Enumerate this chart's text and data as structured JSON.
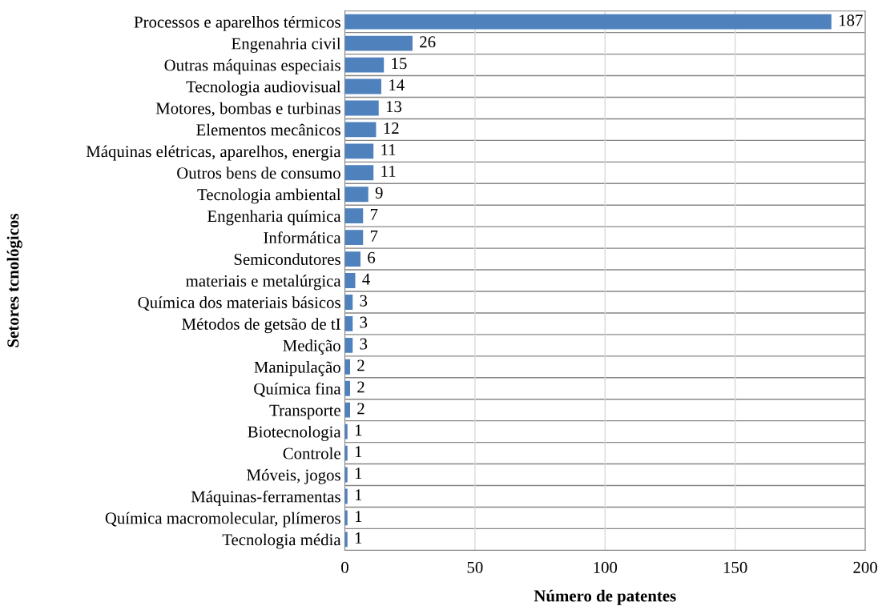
{
  "chart_data": {
    "type": "bar",
    "orientation": "horizontal",
    "xlabel": "Número de patentes",
    "ylabel": "Setores tcnológicos",
    "categories": [
      "Processos e aparelhos térmicos",
      "Engenahria civil",
      "Outras máquinas especiais",
      "Tecnologia audiovisual",
      "Motores, bombas e turbinas",
      "Elementos mecânicos",
      "Máquinas elétricas, aparelhos, energia",
      "Outros bens de consumo",
      "Tecnologia ambiental",
      "Engenharia química",
      "Informática",
      "Semicondutores",
      "materiais e metalúrgica",
      "Química dos materiais básicos",
      "Métodos de getsão de tI",
      "Medição",
      "Manipulação",
      "Química fina",
      "Transporte",
      "Biotecnologia",
      "Controle",
      "Móveis, jogos",
      "Máquinas-ferramentas",
      "Química macromolecular, plímeros",
      "Tecnologia média"
    ],
    "values": [
      187,
      26,
      15,
      14,
      13,
      12,
      11,
      11,
      9,
      7,
      7,
      6,
      4,
      3,
      3,
      3,
      2,
      2,
      2,
      1,
      1,
      1,
      1,
      1,
      1
    ],
    "color": "#4f81bd",
    "xlim": [
      0,
      200
    ],
    "xticks": [
      0,
      50,
      100,
      150,
      200
    ],
    "grid": true,
    "data_labels": true
  }
}
